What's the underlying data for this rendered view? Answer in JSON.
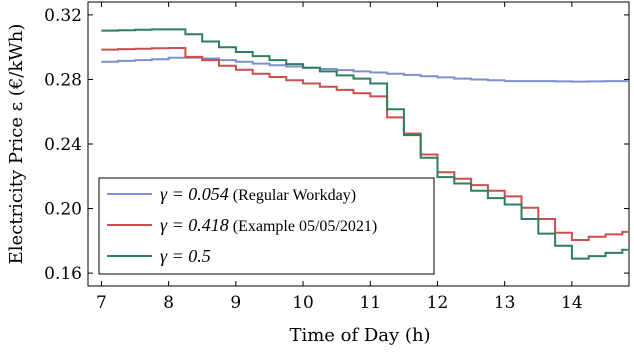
{
  "chart_data": {
    "type": "line",
    "title": "",
    "xlabel": "Time of Day (h)",
    "ylabel": "Electricity Price ε (€/kWh)",
    "xlim": [
      6.8,
      14.85
    ],
    "ylim": [
      0.152,
      0.328
    ],
    "xticks": [
      7,
      8,
      9,
      10,
      11,
      12,
      13,
      14
    ],
    "yticks": [
      0.16,
      0.2,
      0.24,
      0.28,
      0.32
    ],
    "ytick_labels": [
      "0.16",
      "0.20",
      "0.24",
      "0.28",
      "0.32"
    ],
    "grid": false,
    "legend_position": "bottom-left",
    "series": [
      {
        "name": "γ = 0.054 (Regular Workday)",
        "symbol": "γ = 0.054",
        "note": " (Regular Workday)",
        "color": "#7f8fcf",
        "x": [
          7,
          7.25,
          7.5,
          7.75,
          8,
          8.25,
          8.5,
          8.75,
          9,
          9.25,
          9.5,
          9.75,
          10,
          10.25,
          10.5,
          10.75,
          11,
          11.25,
          11.5,
          11.75,
          12,
          12.25,
          12.5,
          12.75,
          13,
          13.25,
          13.5,
          13.75,
          14,
          14.25,
          14.5,
          14.75
        ],
        "y": [
          0.291,
          0.2915,
          0.292,
          0.2925,
          0.2935,
          0.2935,
          0.293,
          0.292,
          0.291,
          0.2898,
          0.2888,
          0.288,
          0.2873,
          0.2865,
          0.2858,
          0.285,
          0.2843,
          0.2835,
          0.2828,
          0.282,
          0.2813,
          0.2805,
          0.28,
          0.2795,
          0.279,
          0.279,
          0.279,
          0.2788,
          0.2787,
          0.2788,
          0.279,
          0.279
        ]
      },
      {
        "name": "γ = 0.418 (Example 05/05/2021)",
        "symbol": "γ = 0.418",
        "note": " (Example 05/05/2021)",
        "color": "#cc4f4f",
        "x": [
          7,
          7.25,
          7.5,
          7.75,
          8,
          8.25,
          8.5,
          8.75,
          9,
          9.25,
          9.5,
          9.75,
          10,
          10.25,
          10.5,
          10.75,
          11,
          11.25,
          11.5,
          11.75,
          12,
          12.25,
          12.5,
          12.75,
          13,
          13.25,
          13.5,
          13.75,
          14,
          14.25,
          14.5,
          14.75
        ],
        "y": [
          0.2985,
          0.2988,
          0.299,
          0.2993,
          0.2995,
          0.294,
          0.292,
          0.2885,
          0.286,
          0.2835,
          0.2815,
          0.2795,
          0.2775,
          0.2755,
          0.2735,
          0.2715,
          0.2695,
          0.2565,
          0.2465,
          0.2335,
          0.2225,
          0.2185,
          0.2145,
          0.211,
          0.2075,
          0.2005,
          0.1935,
          0.185,
          0.1805,
          0.1825,
          0.184,
          0.1855
        ]
      },
      {
        "name": "γ = 0.5",
        "symbol": "γ = 0.5",
        "note": "",
        "color": "#2f7f5f",
        "x": [
          7,
          7.25,
          7.5,
          7.75,
          8,
          8.25,
          8.5,
          8.75,
          9,
          9.25,
          9.5,
          9.75,
          10,
          10.25,
          10.5,
          10.75,
          11,
          11.25,
          11.5,
          11.75,
          12,
          12.25,
          12.5,
          12.75,
          13,
          13.25,
          13.5,
          13.75,
          14,
          14.25,
          14.5,
          14.75
        ],
        "y": [
          0.3103,
          0.3105,
          0.3108,
          0.311,
          0.311,
          0.308,
          0.3035,
          0.3,
          0.297,
          0.2945,
          0.292,
          0.2895,
          0.2873,
          0.285,
          0.2825,
          0.2805,
          0.2775,
          0.2615,
          0.2455,
          0.2315,
          0.2195,
          0.2155,
          0.211,
          0.2065,
          0.2025,
          0.1935,
          0.1845,
          0.177,
          0.169,
          0.1705,
          0.1725,
          0.1745
        ]
      }
    ]
  }
}
